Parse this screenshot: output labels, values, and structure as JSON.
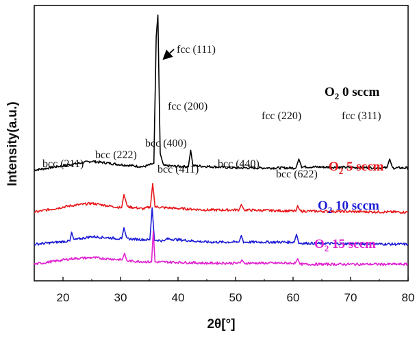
{
  "chart_data": {
    "type": "line",
    "xlabel": "2θ[°]",
    "ylabel": "Intensity(a.u.)",
    "xlim": [
      15,
      80
    ],
    "xticks": [
      20,
      30,
      40,
      50,
      60,
      70,
      80
    ],
    "yticks_shown": false,
    "series": [
      {
        "name": "O2 0 sccm",
        "label_main": "O",
        "label_sub": "2",
        "label_rest": " 0 sccm",
        "color": "#000000",
        "baseline": 1.0,
        "points": [
          [
            15,
            1.0
          ],
          [
            20,
            1.04
          ],
          [
            25,
            1.08
          ],
          [
            30,
            1.05
          ],
          [
            34,
            1.03
          ],
          [
            35.8,
            1.06
          ],
          [
            36.2,
            2.2
          ],
          [
            36.5,
            2.4
          ],
          [
            36.9,
            1.15
          ],
          [
            37.5,
            1.04
          ],
          [
            41.8,
            1.03
          ],
          [
            42.2,
            1.18
          ],
          [
            42.6,
            1.04
          ],
          [
            50,
            1.02
          ],
          [
            60.5,
            1.02
          ],
          [
            61,
            1.1
          ],
          [
            61.5,
            1.03
          ],
          [
            76.3,
            1.02
          ],
          [
            76.8,
            1.1
          ],
          [
            77.3,
            1.02
          ],
          [
            80,
            1.02
          ]
        ]
      },
      {
        "name": "O2 5 sccm",
        "label_main": "O",
        "label_sub": "2",
        "label_rest": " 5 sccm",
        "color": "#e8191c",
        "baseline": 0.62,
        "points": [
          [
            15,
            0.62
          ],
          [
            21.5,
            0.68
          ],
          [
            25,
            0.7
          ],
          [
            30.2,
            0.66
          ],
          [
            30.6,
            0.78
          ],
          [
            31.2,
            0.67
          ],
          [
            34,
            0.65
          ],
          [
            35.2,
            0.67
          ],
          [
            35.6,
            0.88
          ],
          [
            36.0,
            0.67
          ],
          [
            37.8,
            0.66
          ],
          [
            45,
            0.64
          ],
          [
            50.6,
            0.64
          ],
          [
            51,
            0.69
          ],
          [
            51.5,
            0.64
          ],
          [
            60.5,
            0.63
          ],
          [
            60.8,
            0.68
          ],
          [
            61.2,
            0.63
          ],
          [
            80,
            0.62
          ]
        ]
      },
      {
        "name": "O2 10 sccm",
        "label_main": "O",
        "label_sub": "2",
        "label_rest": " 10 sccm",
        "color": "#1b1bd6",
        "baseline": 0.33,
        "points": [
          [
            15,
            0.33
          ],
          [
            21.2,
            0.36
          ],
          [
            21.5,
            0.44
          ],
          [
            21.9,
            0.37
          ],
          [
            25,
            0.4
          ],
          [
            30.2,
            0.38
          ],
          [
            30.6,
            0.48
          ],
          [
            31.1,
            0.38
          ],
          [
            35.1,
            0.37
          ],
          [
            35.5,
            0.66
          ],
          [
            35.9,
            0.37
          ],
          [
            37.6,
            0.36
          ],
          [
            38,
            0.38
          ],
          [
            45,
            0.35
          ],
          [
            50.6,
            0.35
          ],
          [
            51,
            0.41
          ],
          [
            51.4,
            0.35
          ],
          [
            60.2,
            0.35
          ],
          [
            60.6,
            0.42
          ],
          [
            61.0,
            0.34
          ],
          [
            80,
            0.33
          ]
        ]
      },
      {
        "name": "O2 15 sccm",
        "label_main": "O",
        "label_sub": "2",
        "label_rest": " 15 sccm",
        "color": "#e020d0",
        "baseline": 0.15,
        "points": [
          [
            15,
            0.15
          ],
          [
            21.5,
            0.2
          ],
          [
            25,
            0.21
          ],
          [
            30.3,
            0.19
          ],
          [
            30.7,
            0.25
          ],
          [
            31.1,
            0.18
          ],
          [
            35.4,
            0.17
          ],
          [
            35.7,
            0.45
          ],
          [
            36.0,
            0.17
          ],
          [
            38,
            0.17
          ],
          [
            45,
            0.16
          ],
          [
            50.8,
            0.16
          ],
          [
            51.1,
            0.19
          ],
          [
            51.5,
            0.16
          ],
          [
            60.4,
            0.16
          ],
          [
            60.8,
            0.2
          ],
          [
            61.2,
            0.15
          ],
          [
            80,
            0.15
          ]
        ]
      }
    ],
    "annotations": {
      "fcc111": "fcc (111)",
      "fcc200": "fcc (200)",
      "fcc220": "fcc (220)",
      "fcc311": "fcc (311)",
      "bcc211": "bcc (211)",
      "bcc222": "bcc (222)",
      "bcc400": "bcc (400)",
      "bcc411": "bcc (411)",
      "bcc440": "bcc (440)",
      "bcc622": "bcc (622)"
    }
  }
}
